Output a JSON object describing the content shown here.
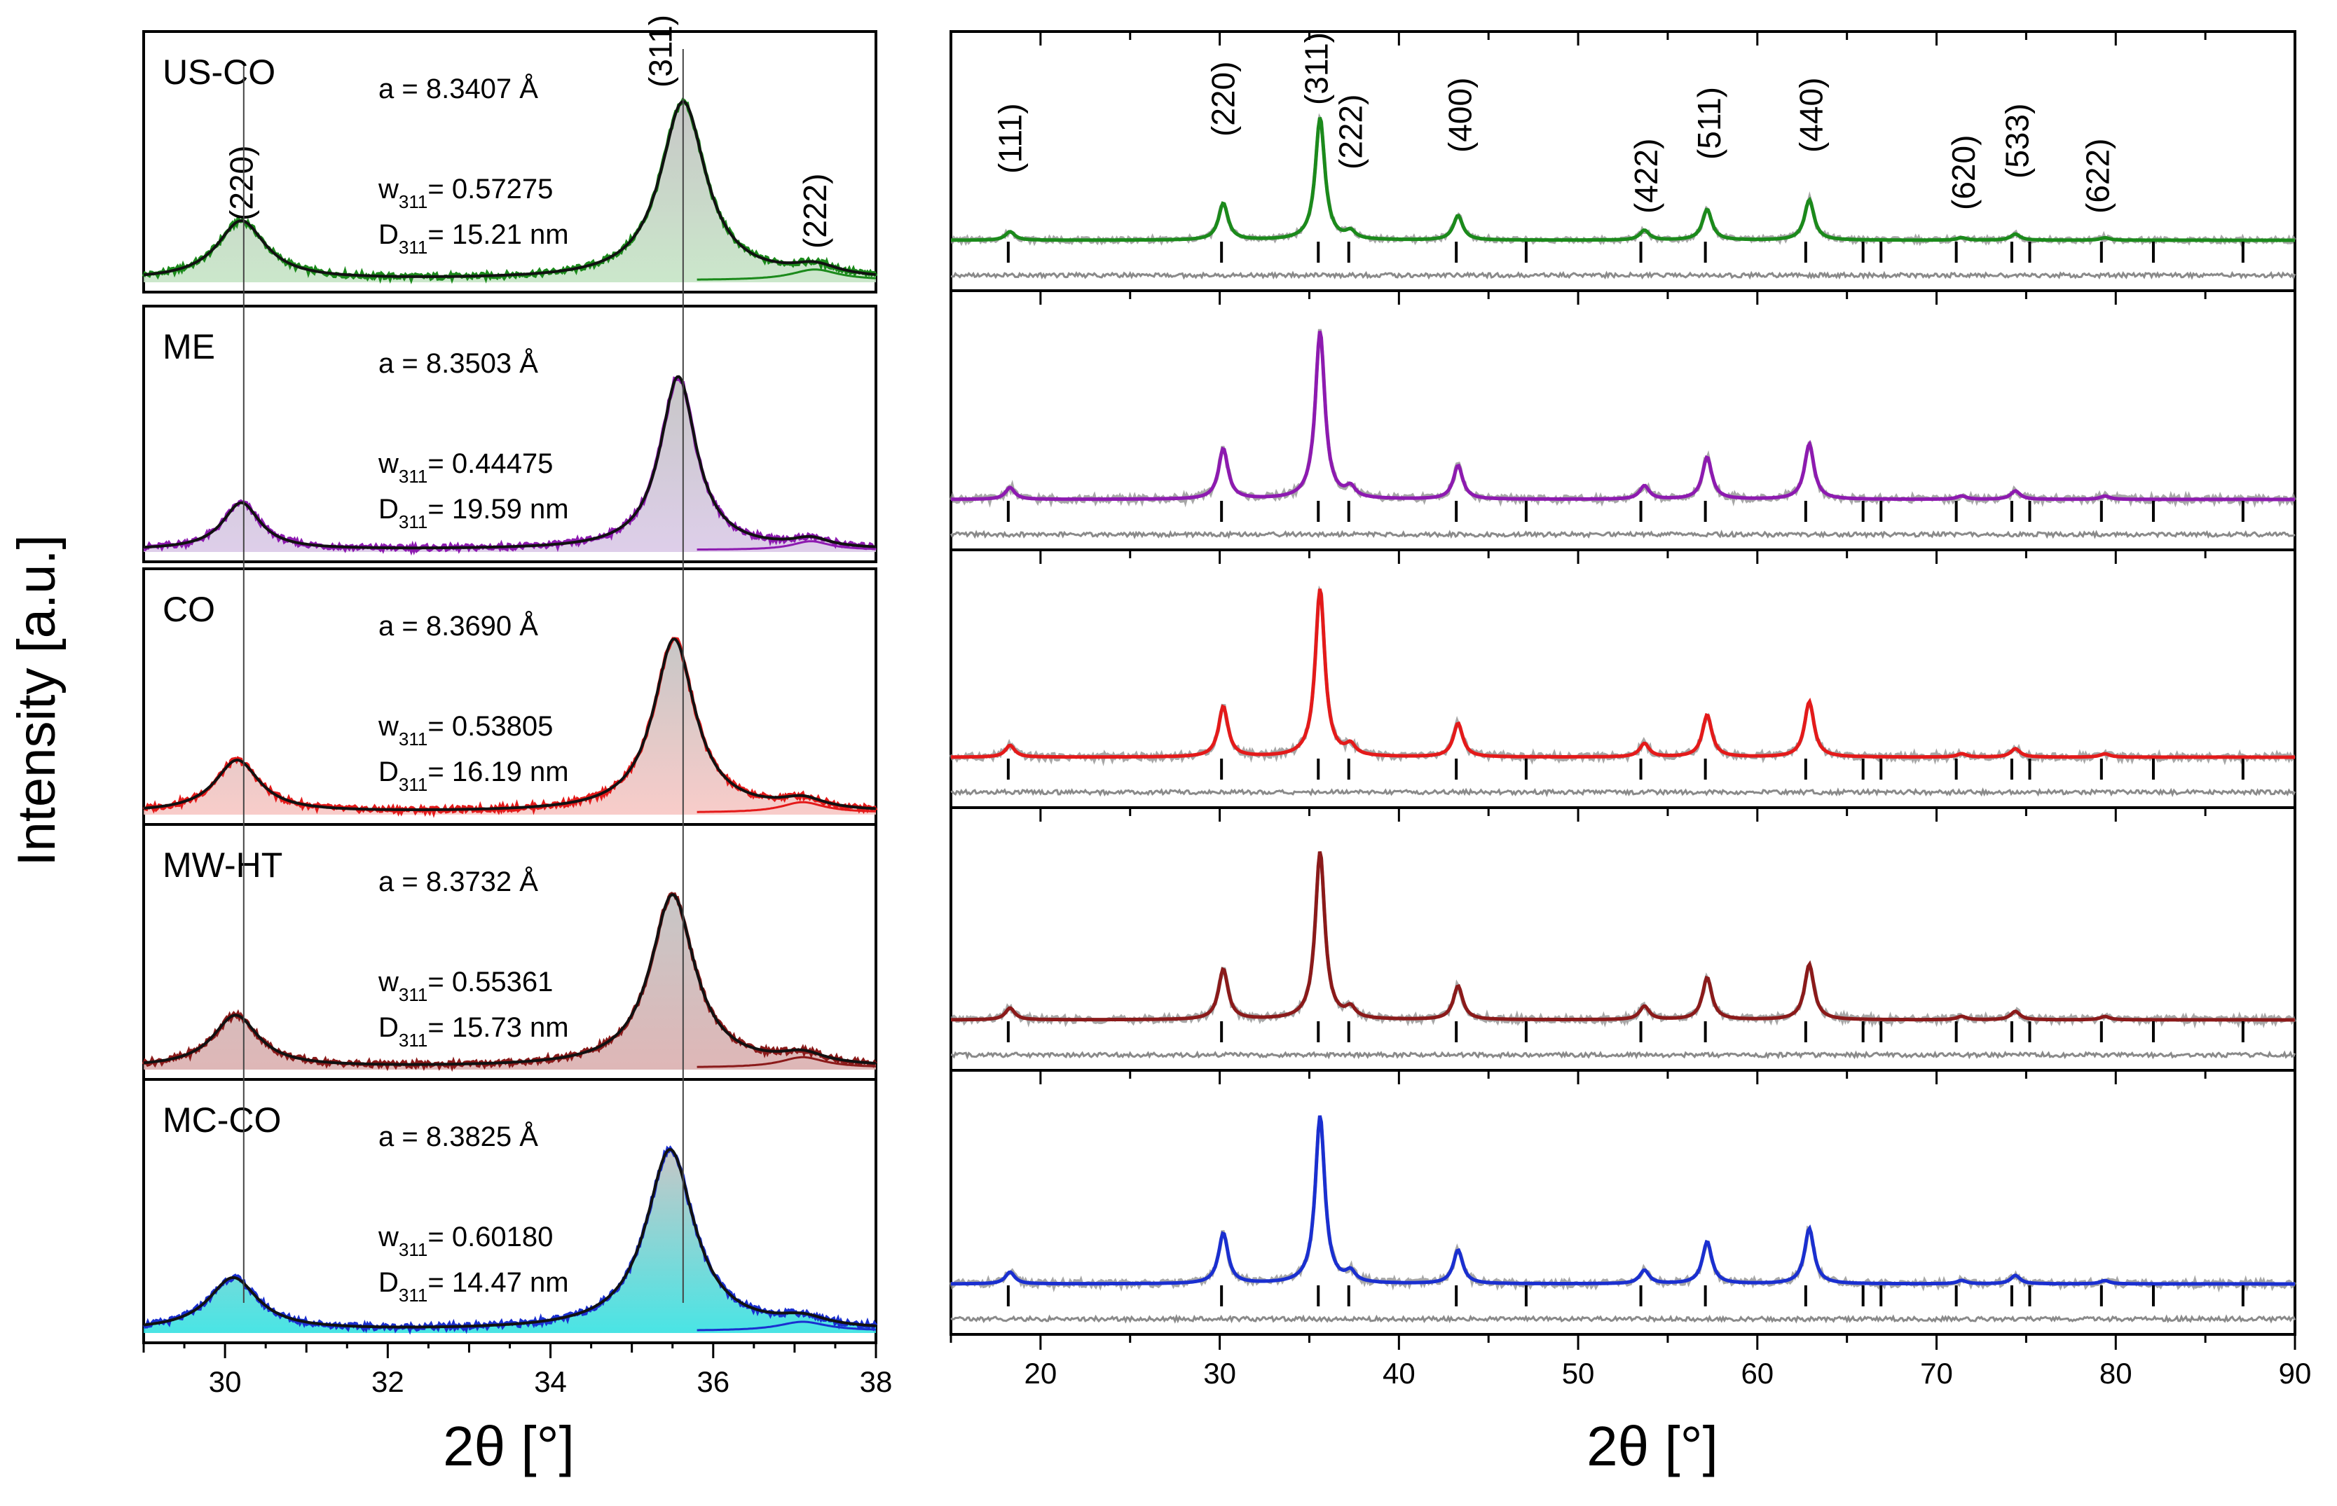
{
  "y_axis_title": "Intensity [a.u.]",
  "chart_data": [
    {
      "type": "line",
      "id": "zoom",
      "xlabel": "2θ [°]",
      "xlim": [
        29,
        38
      ],
      "xticks": [
        30,
        32,
        34,
        36,
        38
      ],
      "ylabel": "Intensity [a.u.]",
      "reference_lines": [
        30.23,
        35.63
      ],
      "panels": [
        {
          "sample": "US-CO",
          "color": "#1b8a1b",
          "fill_light": "#c2e3c2",
          "a_label": "a = 8.3407 Å",
          "w_label": "w",
          "w_sub": "311",
          "w_value": "= 0.57275",
          "d_label": "D",
          "d_sub": "311",
          "d_value": "= 15.21 nm",
          "peaks": [
            {
              "label": "(220)",
              "center": 30.2,
              "height": 0.33,
              "width": 0.36
            },
            {
              "label": "(311)",
              "center": 35.63,
              "height": 1.0,
              "width": 0.34
            },
            {
              "label": "(222)",
              "center": 37.25,
              "height": 0.06,
              "width": 0.35
            }
          ]
        },
        {
          "sample": "ME",
          "color": "#8d1ab0",
          "fill_light": "#d8c6e6",
          "a_label": "a = 8.3503 Å",
          "w_label": "w",
          "w_sub": "311",
          "w_value": "= 0.44475",
          "d_label": "D",
          "d_sub": "311",
          "d_value": "= 19.59 nm",
          "peaks": [
            {
              "label": "(220)",
              "center": 30.2,
              "height": 0.27,
              "width": 0.28
            },
            {
              "label": "(311)",
              "center": 35.57,
              "height": 1.0,
              "width": 0.27
            },
            {
              "label": "(222)",
              "center": 37.2,
              "height": 0.05,
              "width": 0.28
            }
          ]
        },
        {
          "sample": "CO",
          "color": "#e41a1a",
          "fill_light": "#f7c3c0",
          "a_label": "a = 8.3690 Å",
          "w_label": "w",
          "w_sub": "311",
          "w_value": "= 0.53805",
          "d_label": "D",
          "d_sub": "311",
          "d_value": "= 16.19 nm",
          "peaks": [
            {
              "label": "(220)",
              "center": 30.15,
              "height": 0.3,
              "width": 0.33
            },
            {
              "label": "(311)",
              "center": 35.52,
              "height": 1.0,
              "width": 0.31
            },
            {
              "label": "(222)",
              "center": 37.1,
              "height": 0.06,
              "width": 0.32
            }
          ]
        },
        {
          "sample": "MW-HT",
          "color": "#8b1a1a",
          "fill_light": "#d9aaaa",
          "a_label": "a = 8.3732 Å",
          "w_label": "w",
          "w_sub": "311",
          "w_value": "= 0.55361",
          "d_label": "D",
          "d_sub": "311",
          "d_value": "= 15.73 nm",
          "peaks": [
            {
              "label": "(220)",
              "center": 30.13,
              "height": 0.3,
              "width": 0.34
            },
            {
              "label": "(311)",
              "center": 35.5,
              "height": 1.0,
              "width": 0.33
            },
            {
              "label": "(222)",
              "center": 37.1,
              "height": 0.06,
              "width": 0.33
            }
          ]
        },
        {
          "sample": "MC-CO",
          "color": "#1a2fd0",
          "fill_light": "#29e0e0",
          "a_label": "a = 8.3825 Å",
          "w_label": "w",
          "w_sub": "311",
          "w_value": "= 0.60180",
          "d_label": "D",
          "d_sub": "311",
          "d_value": "= 14.47 nm",
          "peaks": [
            {
              "label": "(220)",
              "center": 30.1,
              "height": 0.29,
              "width": 0.37
            },
            {
              "label": "(311)",
              "center": 35.47,
              "height": 1.0,
              "width": 0.36
            },
            {
              "label": "(222)",
              "center": 37.1,
              "height": 0.05,
              "width": 0.36
            }
          ]
        }
      ]
    },
    {
      "type": "line",
      "id": "full",
      "xlabel": "2θ [°]",
      "xlim": [
        15,
        90
      ],
      "xticks": [
        20,
        30,
        40,
        50,
        60,
        70,
        80,
        90
      ],
      "bragg_positions": [
        18.2,
        30.1,
        35.5,
        37.2,
        43.2,
        47.1,
        53.5,
        57.1,
        62.7,
        65.9,
        66.9,
        71.1,
        74.2,
        75.2,
        79.2,
        82.1,
        87.1
      ],
      "hkl_labels": [
        {
          "label": "(111)",
          "pos": 18.3
        },
        {
          "label": "(220)",
          "pos": 30.2
        },
        {
          "label": "(311)",
          "pos": 35.4
        },
        {
          "label": "(222)",
          "pos": 37.3
        },
        {
          "label": "(400)",
          "pos": 43.4
        },
        {
          "label": "(422)",
          "pos": 53.8
        },
        {
          "label": "(511)",
          "pos": 57.3
        },
        {
          "label": "(440)",
          "pos": 63.0
        },
        {
          "label": "(620)",
          "pos": 71.5
        },
        {
          "label": "(533)",
          "pos": 74.5
        },
        {
          "label": "(622)",
          "pos": 79.0
        }
      ],
      "reflections": [
        {
          "pos": 18.3,
          "rel": 0.07
        },
        {
          "pos": 30.2,
          "rel": 0.3
        },
        {
          "pos": 35.6,
          "rel": 1.0
        },
        {
          "pos": 37.3,
          "rel": 0.06
        },
        {
          "pos": 43.3,
          "rel": 0.2
        },
        {
          "pos": 53.7,
          "rel": 0.08
        },
        {
          "pos": 57.2,
          "rel": 0.25
        },
        {
          "pos": 62.9,
          "rel": 0.33
        },
        {
          "pos": 71.4,
          "rel": 0.02
        },
        {
          "pos": 74.4,
          "rel": 0.05
        },
        {
          "pos": 79.4,
          "rel": 0.02
        }
      ],
      "series": [
        {
          "name": "US-CO",
          "color": "#1b8a1b"
        },
        {
          "name": "ME",
          "color": "#8d1ab0"
        },
        {
          "name": "CO",
          "color": "#e41a1a"
        },
        {
          "name": "MW-HT",
          "color": "#8b1a1a"
        },
        {
          "name": "MC-CO",
          "color": "#1a2fd0"
        }
      ]
    }
  ]
}
